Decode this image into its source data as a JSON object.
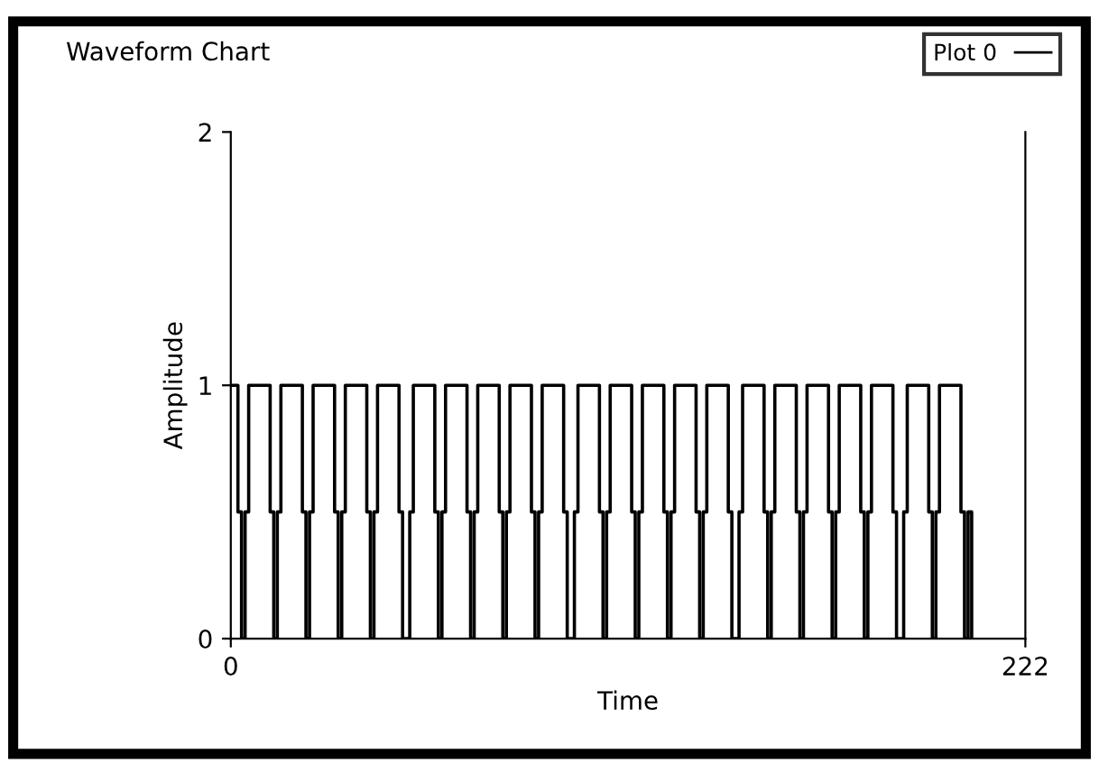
{
  "chart_data": {
    "type": "step",
    "title": "Waveform Chart",
    "xlabel": "Time",
    "ylabel": "Amplitude",
    "xlim": [
      0,
      222
    ],
    "xticks": [
      0,
      222
    ],
    "ylim": [
      0,
      2
    ],
    "yticks": [
      0,
      1,
      2
    ],
    "grid": false,
    "legend": "top right",
    "marker": "none",
    "line_style": "solid",
    "series": [
      {
        "name": "Plot 0",
        "color": "#000000",
        "x": [
          0,
          2,
          3,
          4,
          5,
          11,
          12,
          13,
          14,
          20,
          21,
          22,
          23,
          29,
          30,
          31,
          32,
          38,
          39,
          40,
          41,
          47,
          48,
          50,
          51,
          57,
          58,
          59,
          60,
          66,
          67,
          68,
          69,
          75,
          76,
          77,
          78,
          84,
          85,
          86,
          87,
          93,
          94,
          96,
          97,
          103,
          104,
          105,
          106,
          112,
          113,
          114,
          115,
          121,
          122,
          123,
          124,
          130,
          131,
          132,
          133,
          139,
          140,
          142,
          143,
          149,
          150,
          151,
          152,
          158,
          159,
          160,
          161,
          167,
          168,
          169,
          170,
          176,
          177,
          178,
          179,
          185,
          186,
          188,
          189,
          195,
          196,
          197,
          198,
          204,
          205,
          206,
          207
        ],
        "values": [
          1,
          0.5,
          0,
          0.5,
          1,
          0.5,
          0,
          0.5,
          1,
          0.5,
          0,
          0.5,
          1,
          0.5,
          0,
          0.5,
          1,
          0.5,
          0,
          0.5,
          1,
          0.5,
          0,
          0.5,
          1,
          0.5,
          0,
          0.5,
          1,
          0.5,
          0,
          0.5,
          1,
          0.5,
          0,
          0.5,
          1,
          0.5,
          0,
          0.5,
          1,
          0.5,
          0,
          0.5,
          1,
          0.5,
          0,
          0.5,
          1,
          0.5,
          0,
          0.5,
          1,
          0.5,
          0,
          0.5,
          1,
          0.5,
          0,
          0.5,
          1,
          0.5,
          0,
          0.5,
          1,
          0.5,
          0,
          0.5,
          1,
          0.5,
          0,
          0.5,
          1,
          0.5,
          0,
          0.5,
          1,
          0.5,
          0,
          0.5,
          1,
          0.5,
          0,
          0.5,
          1,
          0.5,
          0,
          0.5,
          1,
          0.5,
          0,
          0.5,
          0
        ]
      }
    ]
  }
}
